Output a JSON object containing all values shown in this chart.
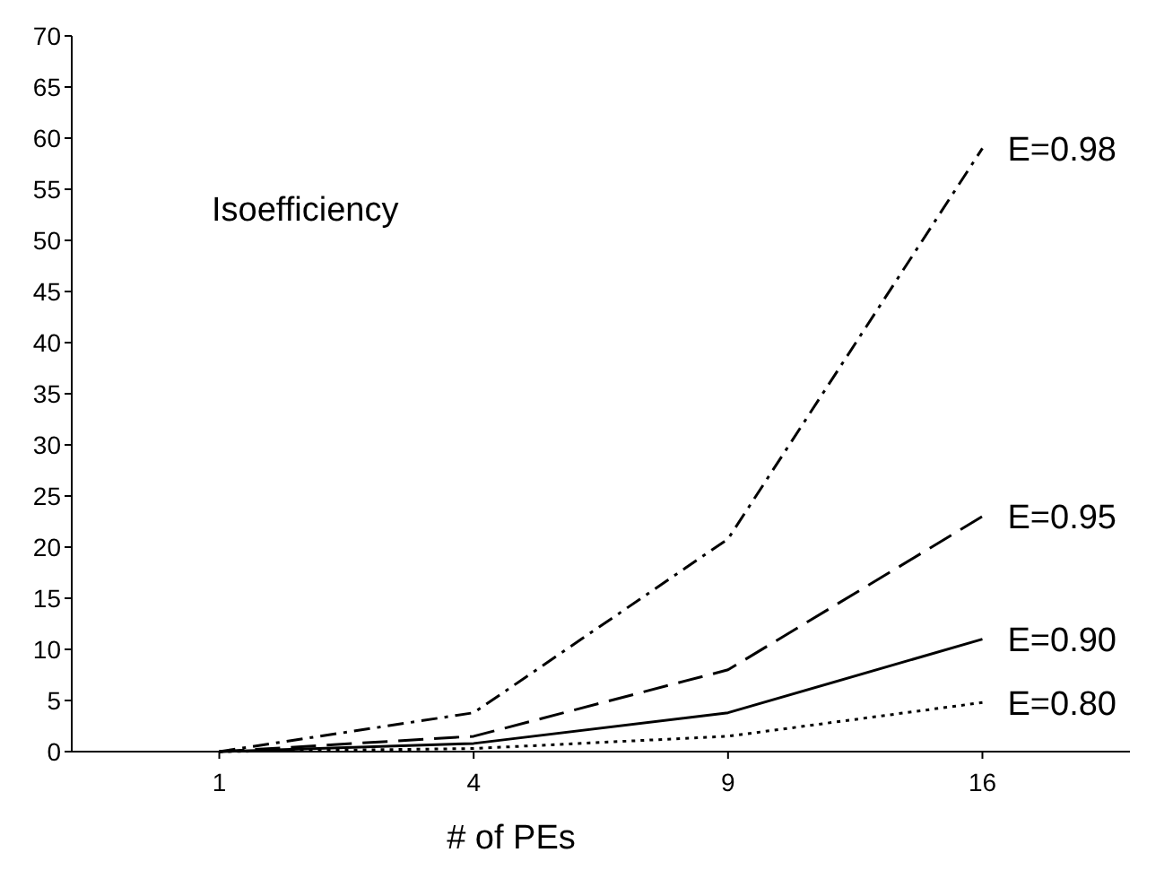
{
  "chart_data": {
    "type": "line",
    "xlabel": "# of PEs",
    "categories": [
      "1",
      "4",
      "9",
      "16"
    ],
    "series": [
      {
        "name": "E=0.98",
        "color": "#000000",
        "line_style": "dashdot",
        "values": [
          0,
          3.8,
          20.8,
          59
        ]
      },
      {
        "name": "E=0.95",
        "color": "#000000",
        "line_style": "dashed",
        "values": [
          0,
          1.5,
          8,
          23
        ]
      },
      {
        "name": "E=0.90",
        "color": "#000000",
        "line_style": "solid",
        "values": [
          0,
          0.8,
          3.8,
          11
        ]
      },
      {
        "name": "E=0.80",
        "color": "#000000",
        "line_style": "dotted",
        "values": [
          0,
          0.3,
          1.5,
          4.8
        ]
      }
    ],
    "ylim": [
      0,
      70
    ],
    "yticks": [
      0,
      5,
      10,
      15,
      20,
      25,
      30,
      35,
      40,
      45,
      50,
      55,
      60,
      65,
      70
    ],
    "annotations": [
      "Isoefficiency"
    ],
    "grid": false,
    "marker": "none"
  }
}
